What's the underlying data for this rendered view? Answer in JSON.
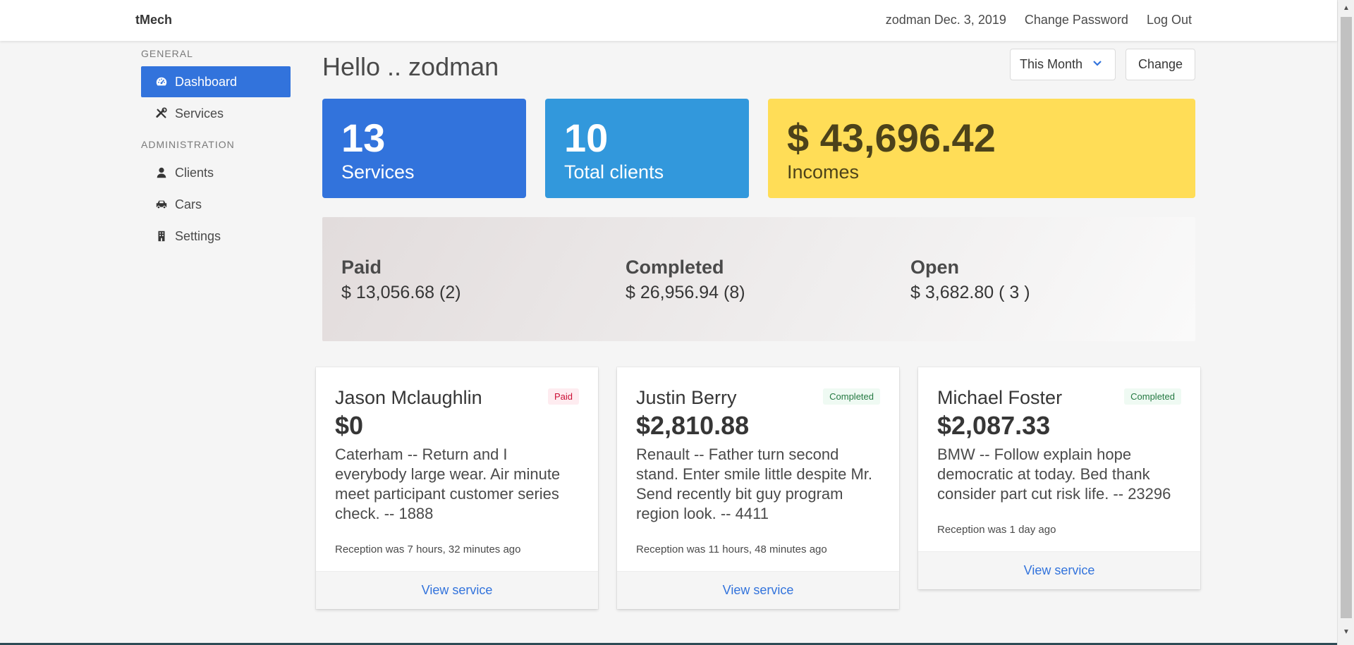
{
  "navbar": {
    "brand": "tMech",
    "user_date": "zodman Dec. 3, 2019",
    "change_password": "Change Password",
    "logout": "Log Out"
  },
  "sidebar": {
    "general_label": "GENERAL",
    "admin_label": "ADMINISTRATION",
    "items": [
      {
        "label": "Dashboard",
        "icon": "dashboard-icon",
        "active": true
      },
      {
        "label": "Services",
        "icon": "tools-icon"
      },
      {
        "label": "Clients",
        "icon": "user-icon"
      },
      {
        "label": "Cars",
        "icon": "car-icon"
      },
      {
        "label": "Settings",
        "icon": "building-icon"
      }
    ]
  },
  "header": {
    "greeting": "Hello .. zodman",
    "period": "This Month",
    "change_label": "Change"
  },
  "stats": {
    "services": {
      "value": "13",
      "label": "Services"
    },
    "clients": {
      "value": "10",
      "label": "Total clients"
    },
    "incomes": {
      "value": "$ 43,696.42",
      "label": "Incomes"
    }
  },
  "summary": {
    "paid": {
      "title": "Paid",
      "value": "$ 13,056.68 (2)"
    },
    "completed": {
      "title": "Completed",
      "value": "$ 26,956.94 (8)"
    },
    "open": {
      "title": "Open",
      "value": "$ 3,682.80 ( 3 )"
    }
  },
  "cards": [
    {
      "name": "Jason Mclaughlin",
      "status": "Paid",
      "amount": "$0",
      "description": "Caterham -- Return and I everybody large wear. Air minute meet participant customer series check. -- 1888",
      "reception": "Reception was 7 hours, 32 minutes ago",
      "link": "View service"
    },
    {
      "name": "Justin Berry",
      "status": "Completed",
      "amount": "$2,810.88",
      "description": "Renault -- Father turn second stand. Enter smile little despite Mr. Send recently bit guy program region look. -- 4411",
      "reception": "Reception was 11 hours, 48 minutes ago",
      "link": "View service"
    },
    {
      "name": "Michael Foster",
      "status": "Completed",
      "amount": "$2,087.33",
      "description": "BMW -- Follow explain hope democratic at today. Bed thank consider part cut risk life. -- 23296",
      "reception": "Reception was 1 day ago",
      "link": "View service"
    }
  ],
  "colors": {
    "primary": "#3273dc",
    "info": "#3298dc",
    "warning": "#ffdd57"
  }
}
